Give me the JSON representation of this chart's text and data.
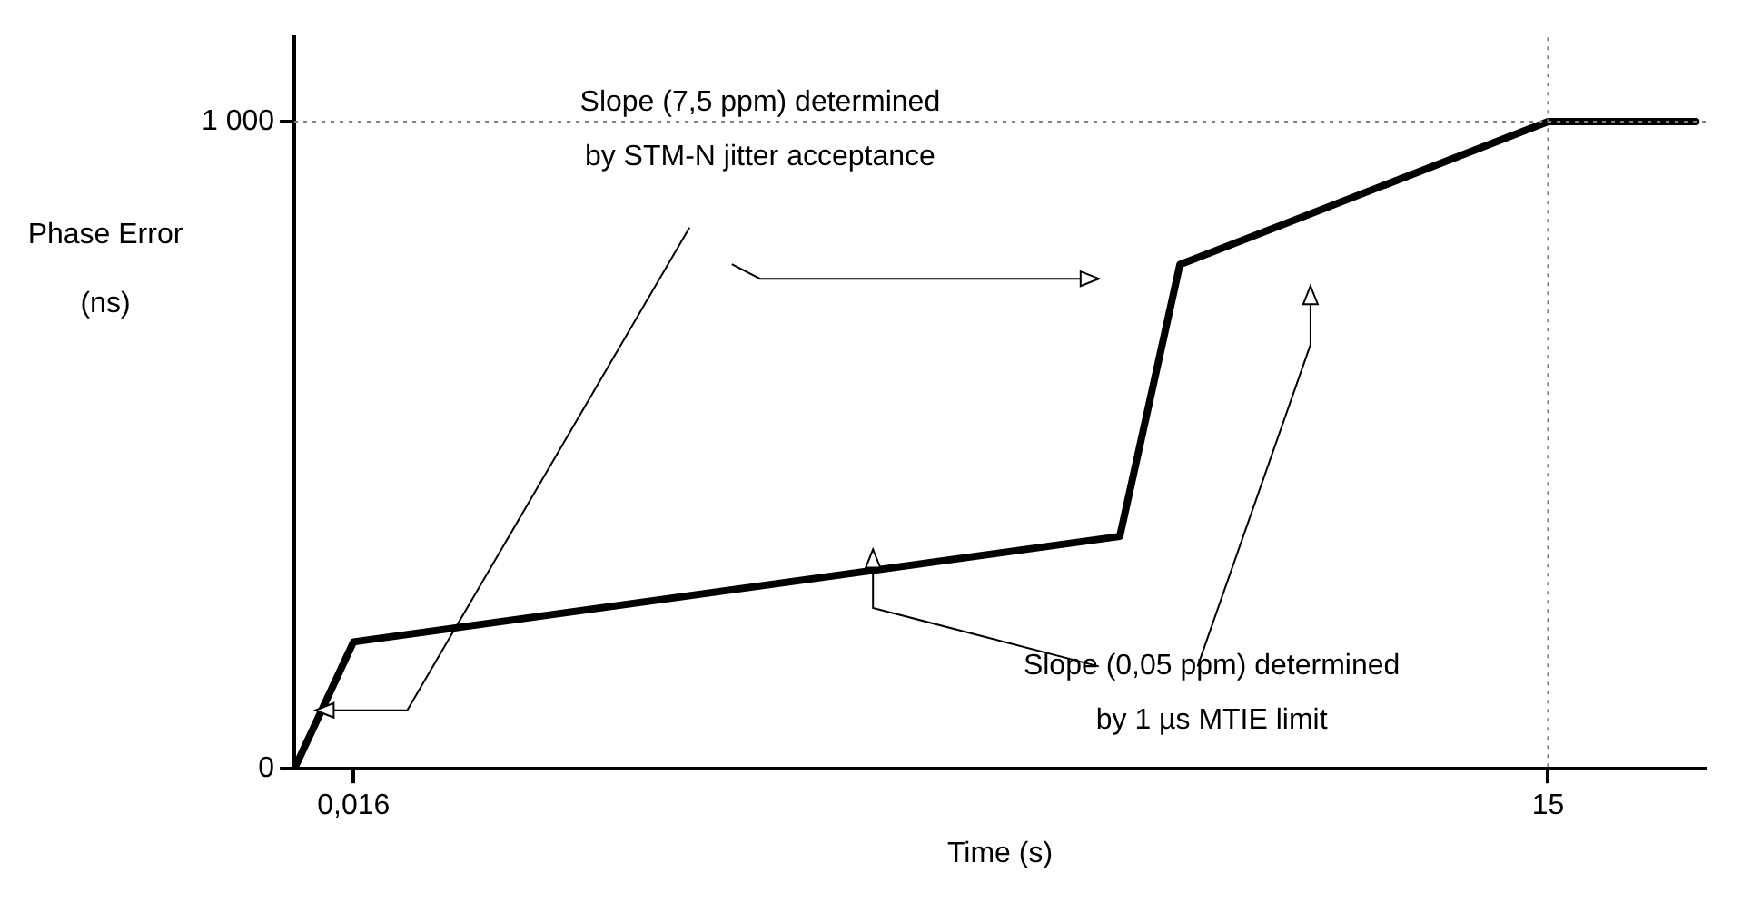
{
  "chart_data": {
    "type": "line",
    "xlabel": "Time (s)",
    "ylabel": "Phase Error\n(ns)",
    "x": [
      0.0114,
      0.016,
      1.29,
      1.82,
      15,
      35
    ],
    "series": [
      {
        "color": "#000000",
        "values": [
          0,
          196,
          359,
          779,
          1000,
          1000
        ]
      }
    ],
    "log": "x",
    "xlim": [
      0.0114,
      37
    ],
    "xticks": [
      {
        "value": 0.016,
        "label": "0,016"
      },
      15
    ],
    "ylim": [
      0,
      1130
    ],
    "yticks": [
      0,
      {
        "value": 1000,
        "label": "1 000"
      }
    ],
    "grid": false,
    "legend": false,
    "marker": "none",
    "line_style": "solid",
    "ref_lines": [
      {
        "axis": "y",
        "value": 1000,
        "color": "#808080",
        "line_style": "dotted"
      },
      {
        "axis": "x",
        "value": 15,
        "color": "#808080",
        "line_style": "dotted"
      }
    ],
    "annotations": [
      "Slope (7,5 ppm) determined\nby STM-N jitter acceptance",
      "Slope (0,05 ppm) determined\nby 1 µs MTIE limit"
    ]
  }
}
